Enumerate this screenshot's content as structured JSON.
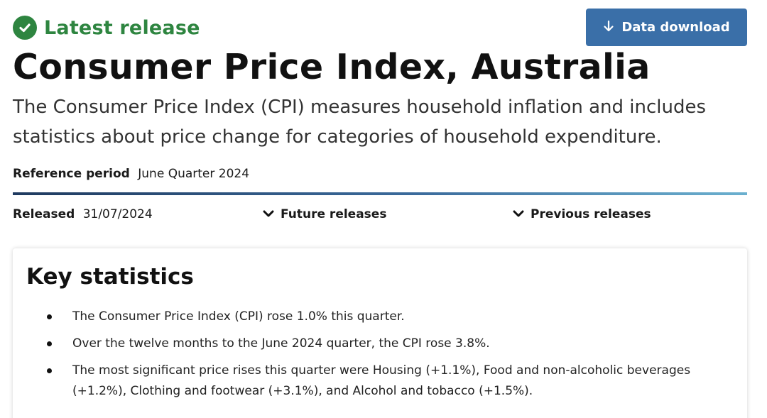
{
  "status": {
    "label": "Latest release",
    "icon": "check-circle-icon",
    "color": "#2e8540"
  },
  "download_button": {
    "label": "Data download",
    "icon": "arrow-down-icon",
    "color": "#3a6fa8"
  },
  "title": "Consumer Price Index, Australia",
  "description": "The Consumer Price Index (CPI) measures household inflation and includes statistics about price change for categories of household expenditure.",
  "reference_period": {
    "label": "Reference period",
    "value": "June Quarter 2024"
  },
  "released": {
    "label": "Released",
    "value": "31/07/2024"
  },
  "toggles": {
    "future": "Future releases",
    "previous": "Previous releases"
  },
  "key_statistics": {
    "heading": "Key statistics",
    "items": [
      "The Consumer Price Index (CPI) rose 1.0% this quarter.",
      "Over the twelve months to the June 2024 quarter, the CPI rose 3.8%.",
      "The most significant price rises this quarter were Housing (+1.1%), Food and non-alcoholic beverages (+1.2%), Clothing and footwear (+3.1%), and Alcohol and tobacco (+1.5%)."
    ]
  }
}
